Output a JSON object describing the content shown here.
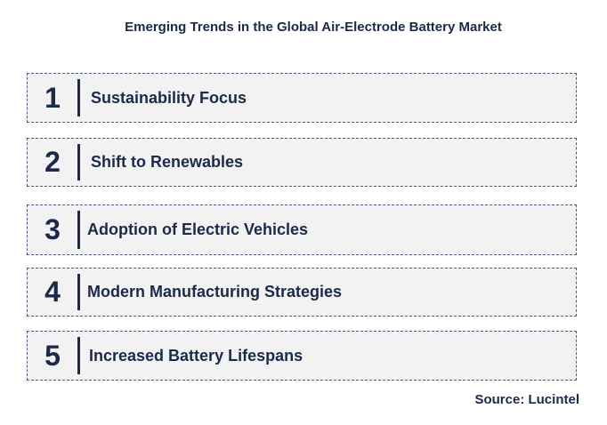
{
  "title": "Emerging Trends in the Global Air-Electrode Battery Market",
  "trends": [
    {
      "number": "1",
      "label": "Sustainability Focus"
    },
    {
      "number": "2",
      "label": "Shift to Renewables"
    },
    {
      "number": "3",
      "label": "Adoption of Electric Vehicles"
    },
    {
      "number": "4",
      "label": "Modern Manufacturing Strategies"
    },
    {
      "number": "5",
      "label": "Increased Battery Lifespans"
    }
  ],
  "source": "Source: Lucintel",
  "colors": {
    "text": "#1b2a4a",
    "row_background": "#f2f2f2",
    "border": "#4a5a7a"
  }
}
